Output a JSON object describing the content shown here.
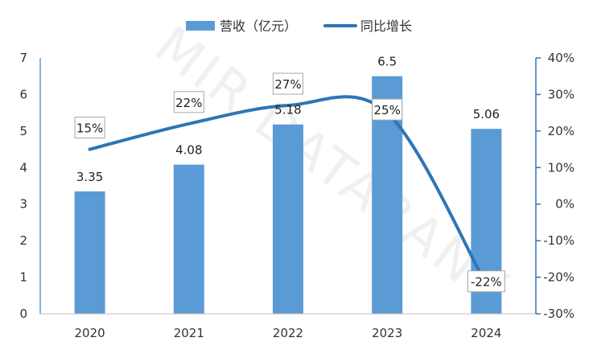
{
  "chart_data": {
    "type": "bar",
    "categories": [
      "2020",
      "2021",
      "2022",
      "2023",
      "2024"
    ],
    "series": [
      {
        "name": "营收（亿元）",
        "kind": "bar",
        "axis": "left",
        "values": [
          3.35,
          4.08,
          5.18,
          6.5,
          5.06
        ],
        "labels": [
          "3.35",
          "4.08",
          "5.18",
          "6.5",
          "5.06"
        ],
        "color": "#5b9bd5"
      },
      {
        "name": "同比增长",
        "kind": "line",
        "axis": "right",
        "values": [
          15,
          22,
          27,
          25,
          -22
        ],
        "labels": [
          "15%",
          "22%",
          "27%",
          "25%",
          "-22%"
        ],
        "color": "#2e75b6"
      }
    ],
    "ylim_left": [
      0,
      7
    ],
    "yticks_left": [
      "0",
      "1",
      "2",
      "3",
      "4",
      "5",
      "6",
      "7"
    ],
    "ylim_right": [
      -30,
      40
    ],
    "yticks_right": [
      "-30%",
      "-20%",
      "-10%",
      "0%",
      "10%",
      "20%",
      "30%",
      "40%"
    ],
    "legend_position": "top-center",
    "grid": false
  },
  "watermark": "MIR DATABANK"
}
